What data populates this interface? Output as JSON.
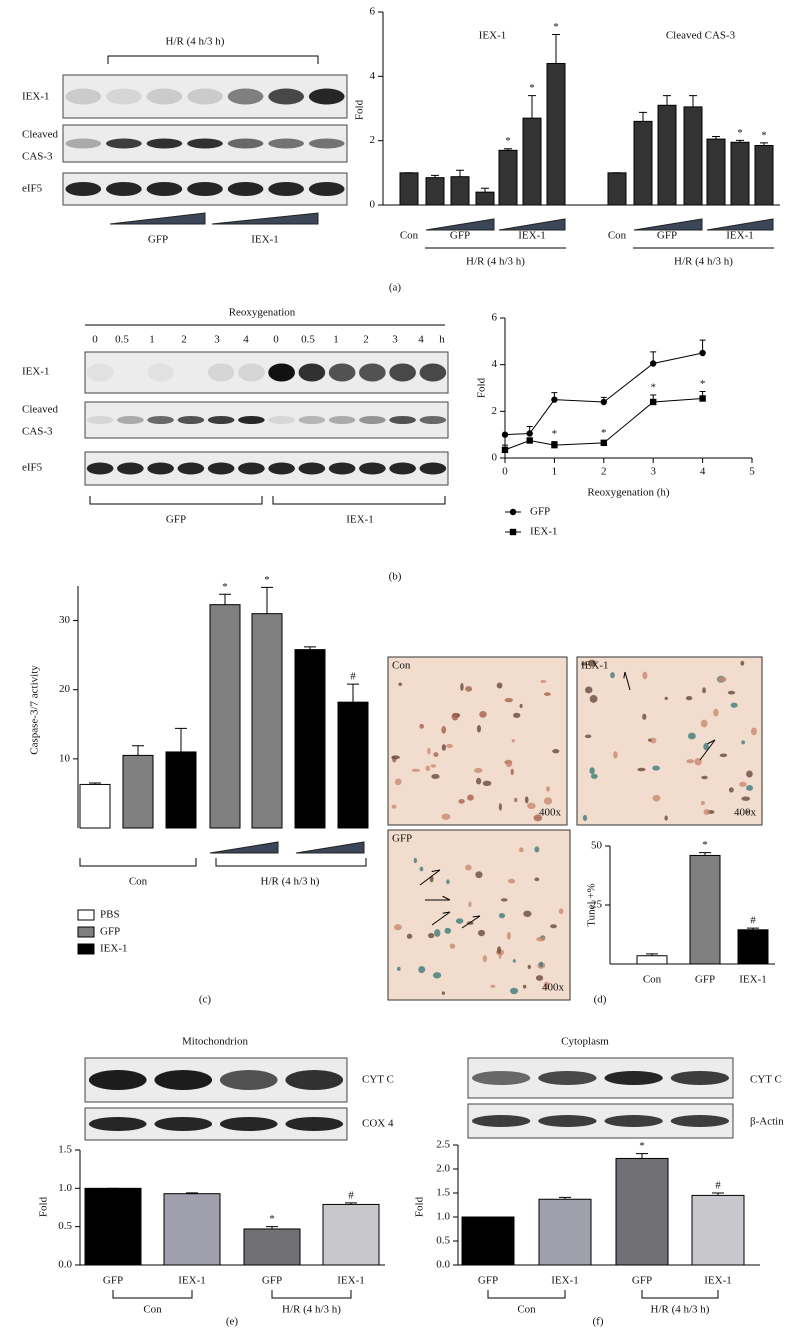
{
  "panel_labels": [
    "(a)",
    "(b)",
    "(c)",
    "(d)",
    "(e)",
    "(f)"
  ],
  "blots": {
    "a": {
      "treatment": "H/R (4 h/3 h)",
      "rows": [
        [
          "IEX-1"
        ],
        [
          "Cleaved",
          "CAS-3"
        ],
        [
          "eIF5"
        ]
      ],
      "groups": [
        "GFP",
        "IEX-1"
      ]
    },
    "b": {
      "title": "Reoxygenation",
      "lanes": [
        "0",
        "0.5",
        "1",
        "2",
        "3",
        "4",
        "0",
        "0.5",
        "1",
        "2",
        "3",
        "4"
      ],
      "unit": "h",
      "rows": [
        [
          "IEX-1"
        ],
        [
          "Cleaved",
          "CAS-3"
        ],
        [
          "eIF5"
        ]
      ],
      "groups": [
        "GFP",
        "IEX-1"
      ]
    },
    "e": {
      "title": "Mitochondrion",
      "rows": [
        "CYT C",
        "COX 4"
      ]
    },
    "f": {
      "title": "Cytoplasm",
      "rows": [
        "CYT C",
        "β-Actin"
      ]
    }
  },
  "micrographs": {
    "labels": [
      "Con",
      "IEX-1",
      "GFP"
    ],
    "magnification": [
      "400x",
      "400x",
      "400x"
    ]
  },
  "chart_data": [
    {
      "type": "panel-bar",
      "ylabel": "Fold",
      "ylim": [
        0,
        6
      ],
      "yticks": [
        0,
        2,
        4,
        6
      ],
      "color": "#333333",
      "categories": [
        "Con",
        null,
        "GFP",
        null,
        null,
        "IEX-1",
        null
      ],
      "group_label": "H/R (4 h/3 h)",
      "panels": [
        {
          "title": "IEX-1",
          "values": [
            1.0,
            0.85,
            0.88,
            0.4,
            1.7,
            2.7,
            4.4
          ],
          "errors": [
            0,
            0.07,
            0.2,
            0.12,
            0.05,
            0.7,
            0.9
          ],
          "markers": [
            null,
            null,
            null,
            null,
            "*",
            "*",
            "*"
          ]
        },
        {
          "title": "Cleaved CAS-3",
          "values": [
            1.0,
            2.6,
            3.1,
            3.05,
            2.05,
            1.95,
            1.85
          ],
          "errors": [
            0,
            0.28,
            0.3,
            0.35,
            0.08,
            0.06,
            0.08
          ],
          "markers": [
            null,
            null,
            null,
            null,
            null,
            "*",
            "*"
          ]
        }
      ]
    },
    {
      "type": "line",
      "xlabel": "Reoxygenation (h)",
      "ylabel": "Fold",
      "x": [
        0,
        0.5,
        1,
        2,
        3,
        4
      ],
      "xlim": [
        0,
        5
      ],
      "xticks": [
        0,
        1,
        2,
        3,
        4,
        5
      ],
      "ylim": [
        0,
        6
      ],
      "yticks": [
        0,
        2,
        4,
        6
      ],
      "series": [
        {
          "name": "GFP",
          "color": "#000000",
          "marker": "circle",
          "values": [
            1.0,
            1.05,
            2.5,
            2.4,
            4.05,
            4.5
          ],
          "errors": [
            0,
            0.3,
            0.3,
            0.2,
            0.5,
            0.55
          ]
        },
        {
          "name": "IEX-1",
          "color": "#000000",
          "marker": "square",
          "values": [
            0.35,
            0.75,
            0.55,
            0.65,
            2.4,
            2.55
          ],
          "errors": [
            0.2,
            0.1,
            0.15,
            0.1,
            0.3,
            0.3
          ],
          "markers": [
            null,
            null,
            "*",
            "*",
            "*",
            "*"
          ]
        }
      ]
    },
    {
      "type": "series-bar",
      "ylabel": "Caspase-3/7 activity",
      "ylim": [
        0,
        35
      ],
      "yticks": [
        10,
        20,
        30
      ],
      "group_labels": [
        "Con",
        "H/R (4 h/3 h)"
      ],
      "series": [
        {
          "name": "PBS",
          "color": "#ffffff",
          "values": [
            6.3,
            null,
            null,
            null,
            null,
            null,
            null
          ],
          "errors": [
            0.2,
            null,
            null,
            null,
            null,
            null,
            null
          ]
        },
        {
          "name": "GFP",
          "color": "#808080",
          "values": [
            null,
            10.5,
            null,
            32.3,
            31,
            null,
            null
          ],
          "errors": [
            null,
            1.4,
            null,
            1.5,
            3.8,
            null,
            null
          ],
          "markers": [
            null,
            null,
            null,
            "*",
            "*",
            null,
            null
          ]
        },
        {
          "name": "IEX-1",
          "color": "#000000",
          "values": [
            null,
            null,
            11,
            null,
            null,
            25.8,
            18.2
          ],
          "errors": [
            null,
            null,
            3.4,
            null,
            null,
            0.4,
            2.6
          ],
          "markers": [
            null,
            null,
            null,
            null,
            null,
            null,
            "#"
          ]
        }
      ]
    },
    {
      "type": "bar",
      "ylabel": "Tunel +%",
      "ylim": [
        0,
        50
      ],
      "yticks": [
        25,
        50
      ],
      "categories": [
        "Con",
        "GFP",
        "IEX-1"
      ],
      "values": [
        3.5,
        46,
        14.5
      ],
      "errors": [
        0.8,
        1.2,
        0.7
      ],
      "markers": [
        null,
        "*",
        "#"
      ],
      "colors": [
        "#ffffff",
        "#808080",
        "#000000"
      ]
    },
    {
      "type": "bar",
      "ylabel": "Fold",
      "ylim": [
        0,
        1.5
      ],
      "yticks": [
        {
          "value": 0,
          "label": "0.0"
        },
        {
          "value": 0.5,
          "label": "0.5"
        },
        {
          "value": 1,
          "label": "1.0"
        },
        {
          "value": 1.5,
          "label": "1.5"
        }
      ],
      "categories": [
        "GFP",
        "IEX-1",
        "GFP",
        "IEX-1"
      ],
      "values": [
        1.0,
        0.93,
        0.47,
        0.79
      ],
      "errors": [
        0,
        0.01,
        0.03,
        0.02
      ],
      "markers": [
        null,
        null,
        "*",
        "#"
      ],
      "colors": [
        "#000000",
        "#a0a0ac",
        "#707075",
        "#c8c8cc"
      ],
      "group_labels": [
        "Con",
        "H/R (4 h/3 h)"
      ]
    },
    {
      "type": "bar",
      "ylabel": "Fold",
      "ylim": [
        0,
        2.5
      ],
      "yticks": [
        {
          "value": 0,
          "label": "0.0"
        },
        {
          "value": 0.5,
          "label": "0.5"
        },
        {
          "value": 1,
          "label": "1.0"
        },
        {
          "value": 1.5,
          "label": "1.5"
        },
        {
          "value": 2,
          "label": "2.0"
        },
        {
          "value": 2.5,
          "label": "2.5"
        }
      ],
      "categories": [
        "GFP",
        "IEX-1",
        "GFP",
        "IEX-1"
      ],
      "values": [
        1.0,
        1.37,
        2.22,
        1.45
      ],
      "errors": [
        0,
        0.04,
        0.1,
        0.05
      ],
      "markers": [
        null,
        null,
        "*",
        "#"
      ],
      "colors": [
        "#000000",
        "#a0a0ac",
        "#707075",
        "#c8c8cc"
      ],
      "group_labels": [
        "Con",
        "H/R (4 h/3 h)"
      ]
    }
  ]
}
